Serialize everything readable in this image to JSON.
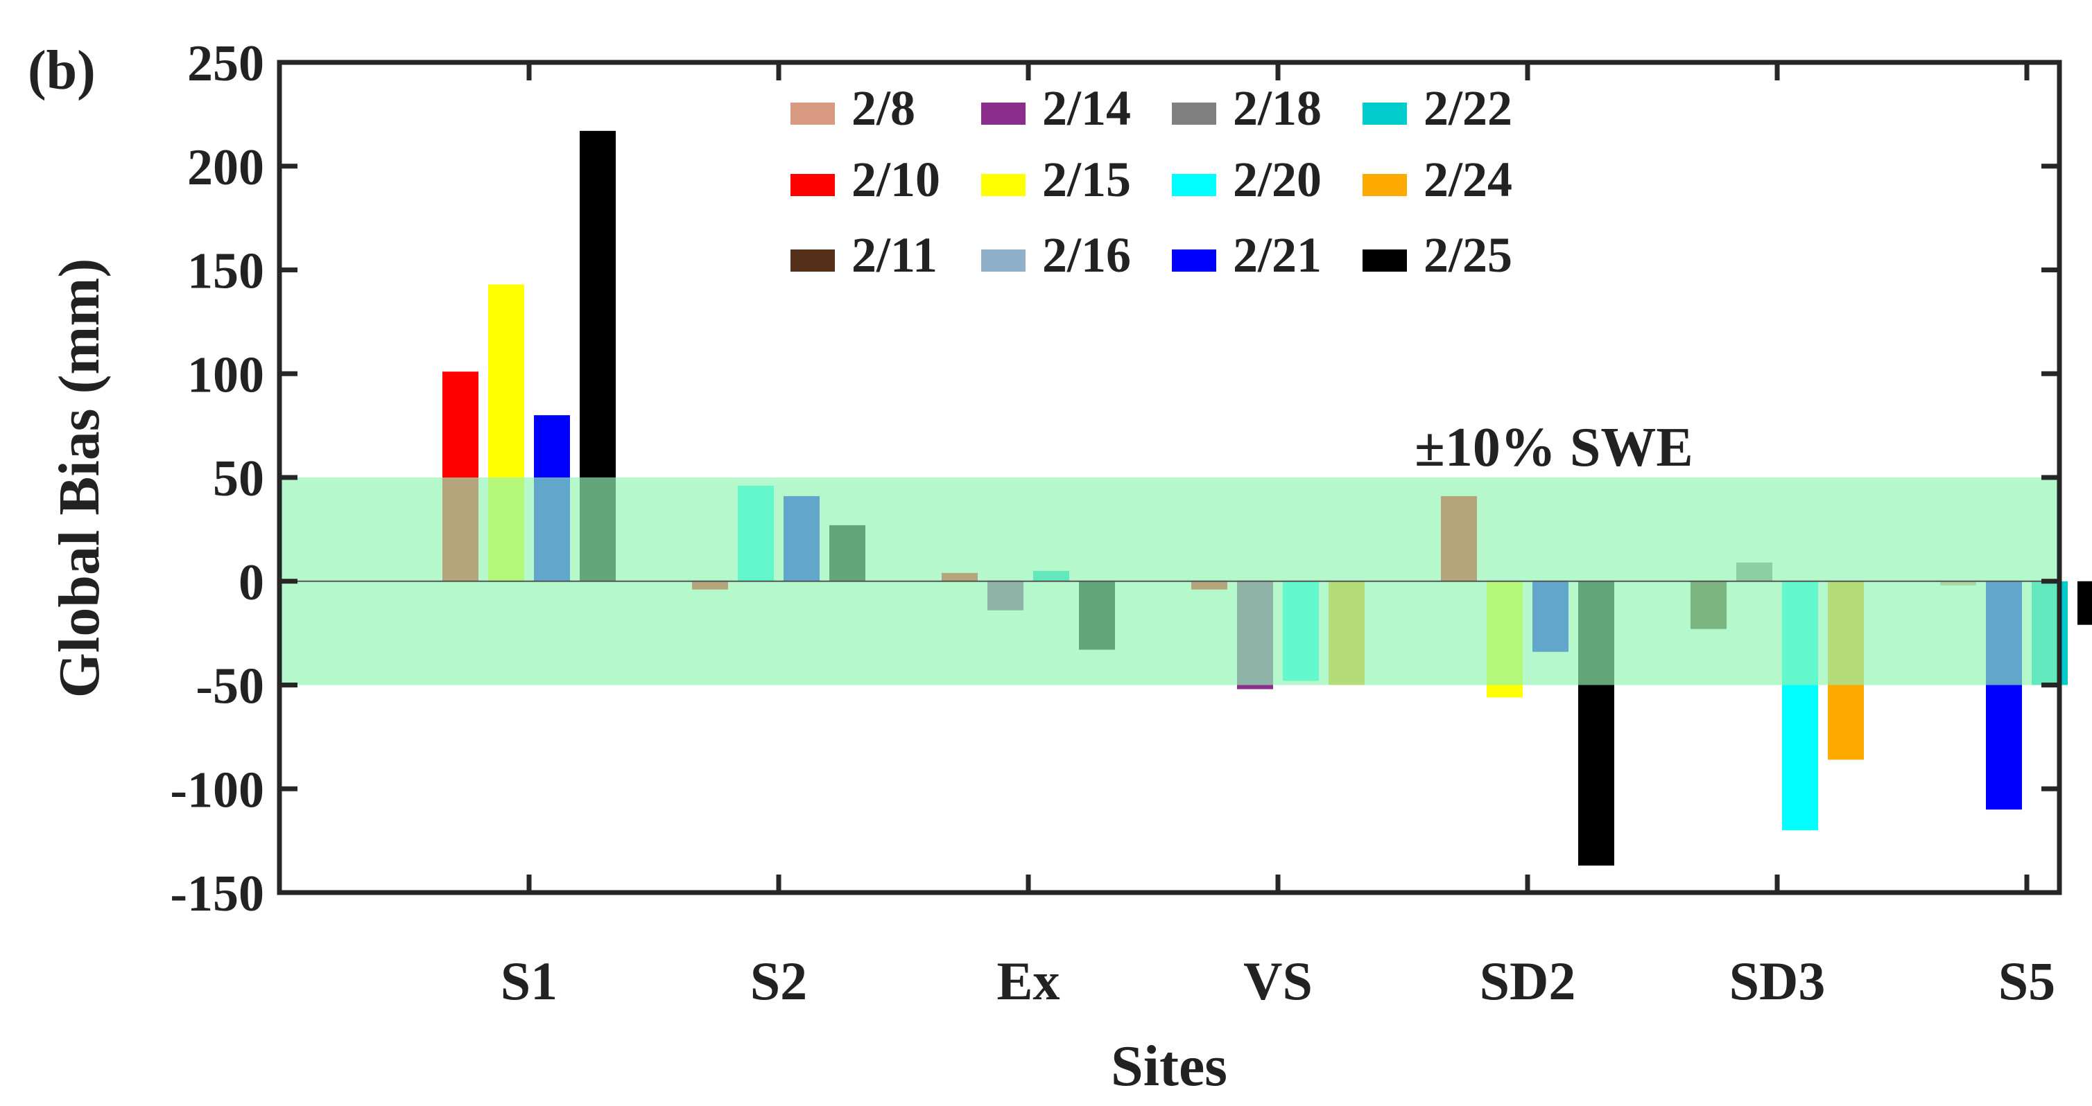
{
  "chart_data": {
    "type": "bar",
    "panel_label": "(b)",
    "title": "",
    "xlabel": "Sites",
    "ylabel": "Global Bias (mm)",
    "ylim": [
      -150,
      250
    ],
    "yticks": [
      -150,
      -100,
      -50,
      0,
      50,
      100,
      150,
      200,
      250
    ],
    "ytick_labels": [
      "-150",
      "-100",
      "-50",
      "0",
      "50",
      "100",
      "150",
      "200",
      "250"
    ],
    "grid": false,
    "legend_position": "top",
    "categories": [
      "S1",
      "S2",
      "Ex",
      "VS",
      "SD2",
      "SD3",
      "S5"
    ],
    "band": {
      "label": "±10% SWE",
      "lower": -50,
      "upper": 50,
      "color": "#90f5b4",
      "opacity": 0.68
    },
    "series": [
      {
        "name": "2/8",
        "color": "#d99a82",
        "values": [
          null,
          null,
          null,
          null,
          null,
          null,
          -2
        ]
      },
      {
        "name": "2/10",
        "color": "#ff0000",
        "values": [
          101,
          -4,
          4,
          -4,
          41,
          null,
          null
        ]
      },
      {
        "name": "2/11",
        "color": "#54301a",
        "values": [
          null,
          null,
          null,
          null,
          null,
          -23,
          null
        ]
      },
      {
        "name": "2/14",
        "color": "#8b2d8b",
        "values": [
          null,
          null,
          -14,
          -52,
          null,
          null,
          null
        ]
      },
      {
        "name": "2/15",
        "color": "#ffff00",
        "values": [
          143,
          null,
          null,
          null,
          -56,
          null,
          null
        ]
      },
      {
        "name": "2/16",
        "color": "#8fb0c8",
        "values": [
          null,
          null,
          null,
          null,
          null,
          null,
          null
        ]
      },
      {
        "name": "2/18",
        "color": "#808080",
        "values": [
          null,
          null,
          null,
          null,
          null,
          9,
          null
        ]
      },
      {
        "name": "2/20",
        "color": "#00ffff",
        "values": [
          null,
          46,
          null,
          -48,
          null,
          -120,
          null
        ]
      },
      {
        "name": "2/21",
        "color": "#0000ff",
        "values": [
          80,
          41,
          null,
          null,
          -34,
          null,
          -110
        ]
      },
      {
        "name": "2/22",
        "color": "#00cccc",
        "values": [
          null,
          null,
          5,
          null,
          null,
          null,
          -50
        ]
      },
      {
        "name": "2/24",
        "color": "#ffaa00",
        "values": [
          null,
          null,
          null,
          -50,
          null,
          -86,
          null
        ]
      },
      {
        "name": "2/25",
        "color": "#000000",
        "values": [
          217,
          27,
          -33,
          null,
          -137,
          null,
          -21
        ]
      }
    ]
  }
}
